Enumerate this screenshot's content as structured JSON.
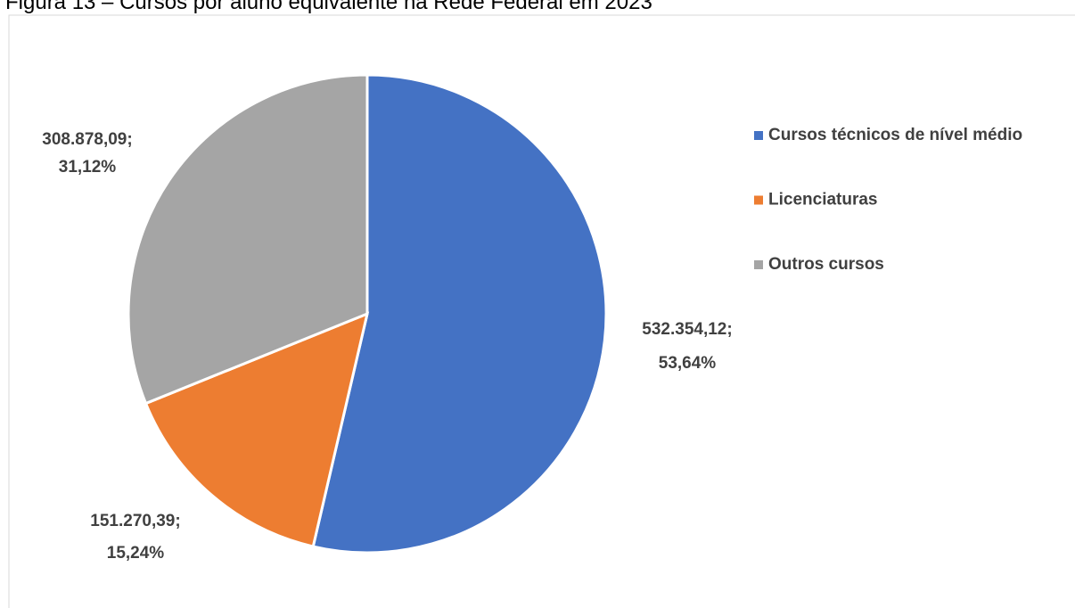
{
  "chart_data": {
    "type": "pie",
    "title": "Figura 13 – Cursos por aluno equivalente na Rede Federal em 2023",
    "categories": [
      "Cursos técnicos de nível médio",
      "Licenciaturas",
      "Outros cursos"
    ],
    "values": [
      532354.12,
      151270.39,
      308878.09
    ],
    "value_labels": [
      "532.354,12;",
      "151.270,39;",
      "308.878,09;"
    ],
    "percents": [
      53.64,
      15.24,
      31.12
    ],
    "percent_labels": [
      "53,64%",
      "15,24%",
      "31,12%"
    ],
    "colors": [
      "#4472c4",
      "#ed7d31",
      "#a5a5a5"
    ],
    "legend": "right"
  }
}
